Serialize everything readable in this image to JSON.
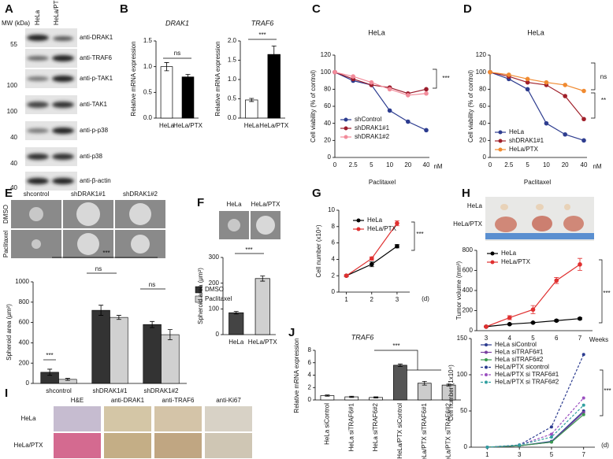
{
  "panel_letters": [
    "A",
    "B",
    "C",
    "D",
    "E",
    "F",
    "G",
    "H",
    "I",
    "J"
  ],
  "blot": {
    "mw_title": "MW (kDa)",
    "lanes": [
      "HeLa",
      "HeLa/PTX"
    ],
    "rows": [
      {
        "label": "anti-DRAK1",
        "mw": "55"
      },
      {
        "label": "anti-TRAF6",
        "mw": null
      },
      {
        "label": "anti-p-TAK1",
        "mw": "100"
      },
      {
        "label": "anti-TAK1",
        "mw": "100"
      },
      {
        "label": "anti-p-p38",
        "mw": "40"
      },
      {
        "label": "anti-p38",
        "mw": "40"
      },
      {
        "label": "anti-β-actin",
        "mw": "40"
      }
    ]
  },
  "spheroid_images_E": {
    "columns": [
      "shcontrol",
      "shDRAK1#1",
      "shDRAK1#2"
    ],
    "rows": [
      "DMSO",
      "Paclitaxel"
    ]
  },
  "spheroid_images_F": {
    "columns": [
      "HeLa",
      "HeLa/PTX"
    ]
  },
  "tumor_photo_H": {
    "rows": [
      "HeLa",
      "HeLa/PTX"
    ]
  },
  "histology_I": {
    "columns": [
      "H&E",
      "anti-DRAK1",
      "anti-TRAF6",
      "anti-Ki67"
    ],
    "rows": [
      "HeLa",
      "HeLa/PTX"
    ]
  },
  "chart_data": [
    {
      "type": "bar",
      "title": "DRAK1",
      "y_label": "Relative mRNA expression",
      "categories": [
        "HeLa",
        "HeLa/PTX"
      ],
      "values": [
        1.0,
        0.8
      ],
      "errors": [
        0.08,
        0.05
      ],
      "colors": [
        "#ffffff",
        "#000000"
      ],
      "ylim": [
        0,
        1.5
      ],
      "yticks": [
        {
          "value": 0,
          "label": "0.0"
        },
        0.5,
        {
          "value": 1,
          "label": "1.0"
        },
        1.5
      ],
      "annotations": [
        "ns"
      ]
    },
    {
      "type": "bar",
      "title": "TRAF6",
      "y_label": "Relative mRNA expression",
      "categories": [
        "HeLa",
        "HeLa/PTX"
      ],
      "values": [
        0.47,
        1.65
      ],
      "errors": [
        0.04,
        0.22
      ],
      "colors": [
        "#ffffff",
        "#000000"
      ],
      "ylim": [
        0,
        2
      ],
      "yticks": [
        {
          "value": 0,
          "label": "0.0"
        },
        0.5,
        {
          "value": 1,
          "label": "1.0"
        },
        1.5,
        {
          "value": 2,
          "label": "2.0"
        }
      ],
      "annotations": [
        "***"
      ]
    },
    {
      "type": "line",
      "title": "HeLa",
      "y_label": "Cell viability (% of control)",
      "x_label": "Paclitaxel",
      "x_unit": "nM",
      "categories": [
        "0",
        "2.5",
        "5",
        "10",
        "20",
        "40"
      ],
      "ylim": [
        0,
        120
      ],
      "yticks": [
        0,
        20,
        40,
        60,
        80,
        100,
        120
      ],
      "series": [
        {
          "name": "shControl",
          "color": "#2b3b8f",
          "values": [
            100,
            90,
            85,
            55,
            42,
            32
          ]
        },
        {
          "name": "shDRAK1#1",
          "color": "#9b1c2c",
          "values": [
            100,
            92,
            85,
            82,
            75,
            80
          ]
        },
        {
          "name": "shDRAK1#2",
          "color": "#f28b9a",
          "values": [
            100,
            95,
            88,
            80,
            73,
            75
          ]
        }
      ],
      "annotations": [
        "***"
      ]
    },
    {
      "type": "line",
      "title": "HeLa",
      "y_label": "Cell viability (% of control)",
      "x_label": "Paclitaxel",
      "x_unit": "nM",
      "categories": [
        "0",
        "2.5",
        "5",
        "10",
        "20",
        "40"
      ],
      "ylim": [
        0,
        120
      ],
      "yticks": [
        0,
        20,
        40,
        60,
        80,
        100,
        120
      ],
      "series": [
        {
          "name": "HeLa",
          "color": "#2e3d8f",
          "values": [
            100,
            92,
            80,
            40,
            27,
            20
          ]
        },
        {
          "name": "shDRAK1#1",
          "color": "#a0202a",
          "values": [
            100,
            95,
            88,
            85,
            72,
            45
          ]
        },
        {
          "name": "HeLa/PTX",
          "color": "#f08a30",
          "values": [
            100,
            97,
            92,
            88,
            85,
            78
          ]
        }
      ],
      "annotations": [
        "ns",
        "**"
      ]
    },
    {
      "type": "bar",
      "y_label": "Spheroid area (μm²)",
      "categories": [
        "shcontrol",
        "shDRAK1#1",
        "shDRAK1#2"
      ],
      "ylim": [
        0,
        1000
      ],
      "yticks": [
        0,
        200,
        400,
        600,
        800,
        1000
      ],
      "series": [
        {
          "name": "DMSO",
          "color": "#333333",
          "values": [
            110,
            720,
            580
          ],
          "errors": [
            30,
            50,
            30
          ]
        },
        {
          "name": "Paclitaxel",
          "color": "#d0d0d0",
          "values": [
            40,
            650,
            480
          ],
          "errors": [
            10,
            20,
            50
          ]
        }
      ],
      "annotations": [
        "***",
        "***",
        "ns",
        "ns"
      ]
    },
    {
      "type": "bar",
      "y_label": "Spheroid area (μm²)",
      "categories": [
        "HeLa",
        "HeLa/PTX"
      ],
      "values": [
        85,
        218
      ],
      "errors": [
        5,
        10
      ],
      "colors": [
        "#444444",
        "#d0d0d0"
      ],
      "ylim": [
        0,
        300
      ],
      "yticks": [
        0,
        100,
        200,
        300
      ],
      "annotations": [
        "***"
      ]
    },
    {
      "type": "line",
      "y_label": "Cell number (x10⁴)",
      "x": [
        1,
        2,
        3
      ],
      "xlim": [
        0.7,
        3.5
      ],
      "xticks": [
        1,
        2,
        3
      ],
      "x_unit": "(d)",
      "ylim": [
        0,
        10
      ],
      "yticks": [
        0,
        2,
        4,
        6,
        8,
        10
      ],
      "series": [
        {
          "name": "HeLa",
          "color": "#000000",
          "values": [
            2,
            3.4,
            5.6
          ],
          "errors": [
            0.1,
            0.3,
            0.2
          ]
        },
        {
          "name": "HeLa/PTX",
          "color": "#e03030",
          "values": [
            2,
            4.1,
            8.4
          ],
          "errors": [
            0.1,
            0.2,
            0.3
          ]
        }
      ],
      "annotations": [
        "***"
      ]
    },
    {
      "type": "line",
      "y_label": "Tumor volume (mm³)",
      "x_unit": "Weeks",
      "categories": [
        "3",
        "4",
        "5",
        "6",
        "7"
      ],
      "ylim": [
        0,
        800
      ],
      "yticks": [
        0,
        200,
        400,
        600,
        800
      ],
      "series": [
        {
          "name": "HeLa",
          "color": "#000000",
          "values": [
            40,
            65,
            80,
            100,
            120
          ],
          "errors": [
            5,
            5,
            5,
            10,
            10
          ]
        },
        {
          "name": "HeLa/PTX",
          "color": "#e03030",
          "values": [
            40,
            130,
            210,
            500,
            660
          ],
          "errors": [
            5,
            20,
            40,
            30,
            60
          ]
        }
      ],
      "annotations": [
        "***"
      ]
    },
    {
      "type": "bar",
      "title": "TRAF6",
      "y_label": "Relative mRNA expression",
      "categories": [
        "HeLa siControl",
        "HeLa siTRAF6#1",
        "HeLa siTRAF6#2",
        "HeLa/PTX siControl",
        "HeLa/PTX siTRAF6#1",
        "HeLa/PTX siTRAF6#2"
      ],
      "values": [
        0.7,
        0.5,
        0.4,
        5.6,
        2.7,
        2.4
      ],
      "errors": [
        0.1,
        0.1,
        0.1,
        0.2,
        0.3,
        0.15
      ],
      "colors": [
        "#ffffff",
        "#ffffff",
        "#ffffff",
        "#555555",
        "#cccccc",
        "#cccccc"
      ],
      "ylim": [
        0,
        8
      ],
      "yticks": [
        0,
        2,
        4,
        6,
        8
      ],
      "annotations": [
        "***"
      ]
    },
    {
      "type": "line",
      "y_label": "Cell number (1x10⁴)",
      "x": [
        1,
        3,
        5,
        7
      ],
      "xlim": [
        0,
        7.7
      ],
      "xticks": [
        1,
        3,
        5,
        7
      ],
      "x_unit": "(d)",
      "ylim": [
        0,
        150
      ],
      "yticks": [
        0,
        50,
        100,
        150
      ],
      "series": [
        {
          "name": "HeLa siControl",
          "color": "#2b3b8f",
          "values": [
            0,
            2,
            8,
            50
          ]
        },
        {
          "name": "HeLa siTRAF6#1",
          "color": "#7a3fa0",
          "values": [
            0,
            2,
            7,
            48
          ]
        },
        {
          "name": "HeLa siTRAF6#2",
          "color": "#3a9a50",
          "values": [
            0,
            2,
            7,
            45
          ]
        },
        {
          "name": "HeLa/PTX sicontrol",
          "color": "#2b3b8f",
          "dashed": true,
          "values": [
            0,
            3,
            28,
            128
          ]
        },
        {
          "name": "HeLa/PTX si TRAF6#1",
          "color": "#9a4fc0",
          "dashed": true,
          "values": [
            0,
            3,
            18,
            68
          ]
        },
        {
          "name": "HeLa/PTX si TRAF6#2",
          "color": "#30a0a0",
          "dashed": true,
          "values": [
            0,
            3,
            14,
            58
          ]
        }
      ],
      "annotations": [
        "***"
      ]
    }
  ]
}
